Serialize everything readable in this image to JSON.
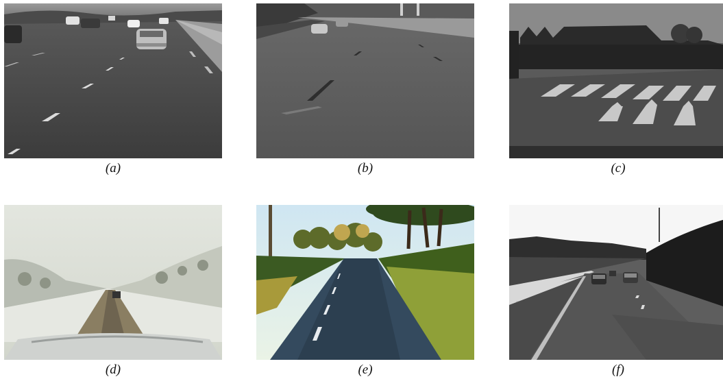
{
  "figure": {
    "panels": [
      {
        "id": "a",
        "caption": "(a)",
        "scene": "grayscale multi-lane highway with traffic and dashed lane markings"
      },
      {
        "id": "b",
        "caption": "(b)",
        "scene": "grayscale highway with worn lane markings and distant cars"
      },
      {
        "id": "c",
        "caption": "(c)",
        "scene": "grayscale urban road with zebra crossing, arrow markings and building"
      },
      {
        "id": "d",
        "caption": "(d)",
        "scene": "snowy rural road seen over vehicle hood"
      },
      {
        "id": "e",
        "caption": "(e)",
        "scene": "color country road with trees, shadows and dashed center line"
      },
      {
        "id": "f",
        "caption": "(f)",
        "scene": "grayscale road with guardrail, traffic and wooded hillside"
      }
    ]
  }
}
